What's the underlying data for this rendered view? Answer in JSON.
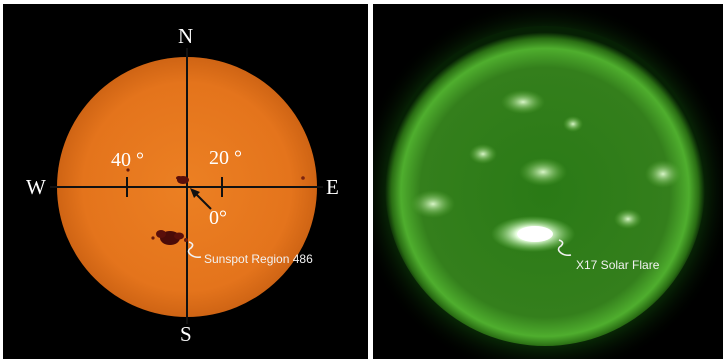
{
  "left_panel": {
    "compass": {
      "north": "N",
      "south": "S",
      "west": "W",
      "east": "E"
    },
    "longitude_labels": {
      "west_40": "40 °",
      "east_20": "20 °",
      "center": "0°"
    },
    "annotation": "Sunspot Region 486",
    "colors": {
      "disk": "#e6781f",
      "grid": "#111111",
      "sunspot": "#5a0f0a"
    }
  },
  "right_panel": {
    "annotation": "X17 Solar Flare",
    "colors": {
      "corona": "#2f8a1a",
      "flare": "#f4fff0"
    }
  }
}
